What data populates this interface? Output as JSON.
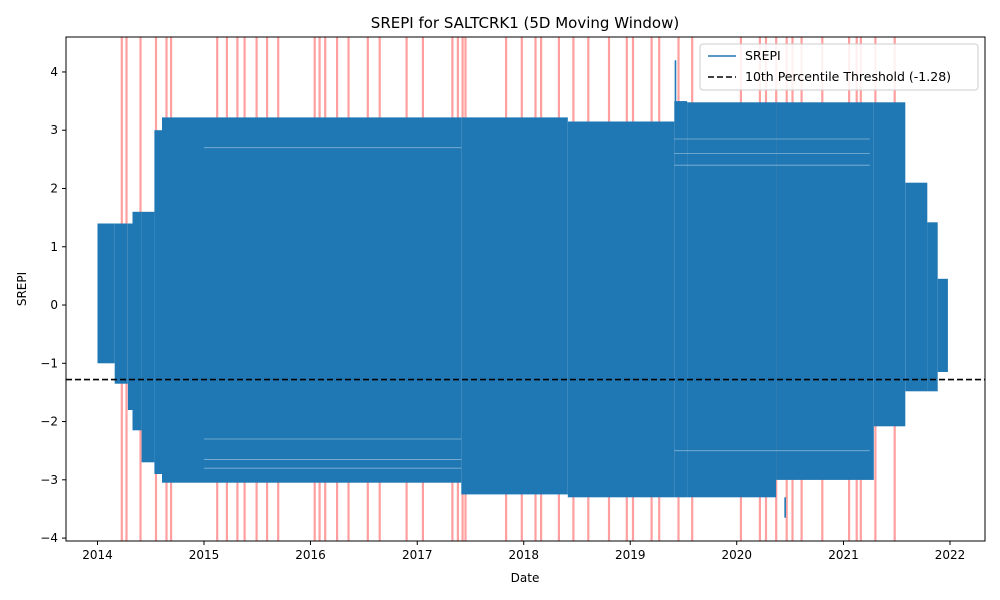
{
  "chart_data": {
    "type": "line",
    "title": "SREPI for SALTCRK1 (5D Moving Window)",
    "xlabel": "Date",
    "ylabel": "SREPI",
    "x_ticks": [
      "2014",
      "2015",
      "2016",
      "2017",
      "2018",
      "2019",
      "2020",
      "2021",
      "2022"
    ],
    "x_range": [
      "2013-09-15",
      "2022-05-01"
    ],
    "y_ticks": [
      -4,
      -3,
      -2,
      -1,
      0,
      1,
      2,
      3,
      4
    ],
    "ylim": [
      -4.05,
      4.6
    ],
    "grid": false,
    "legend_position": "top-right",
    "legend": [
      "SREPI",
      "10th Percentile Threshold (-1.28)"
    ],
    "colors": {
      "series": "#1f77b4",
      "threshold": "#000000",
      "drought_spans": "#ff6b6b"
    },
    "threshold": {
      "name": "10th Percentile Threshold (-1.28)",
      "value": -1.28
    },
    "series": [
      {
        "name": "SREPI",
        "envelope": [
          {
            "from": "2014-01-01",
            "to": "2014-03-01",
            "min": -1.0,
            "max": 1.4
          },
          {
            "from": "2014-03-01",
            "to": "2014-04-15",
            "min": -1.35,
            "max": 1.4
          },
          {
            "from": "2014-04-15",
            "to": "2014-05-01",
            "min": -1.8,
            "max": 1.4
          },
          {
            "from": "2014-05-01",
            "to": "2014-06-01",
            "min": -2.15,
            "max": 1.6
          },
          {
            "from": "2014-06-01",
            "to": "2014-07-15",
            "min": -2.7,
            "max": 1.6
          },
          {
            "from": "2014-07-15",
            "to": "2014-08-10",
            "min": -2.9,
            "max": 3.0
          },
          {
            "from": "2014-08-10",
            "to": "2017-06-01",
            "min": -3.05,
            "max": 3.22
          },
          {
            "from": "2017-06-01",
            "to": "2018-06-01",
            "min": -3.25,
            "max": 3.22
          },
          {
            "from": "2018-06-01",
            "to": "2019-06-01",
            "min": -3.3,
            "max": 3.15
          },
          {
            "from": "2019-06-01",
            "to": "2019-07-15",
            "min": -3.3,
            "max": 3.5
          },
          {
            "from": "2019-07-15",
            "to": "2020-05-15",
            "min": -3.3,
            "max": 3.48
          },
          {
            "from": "2020-05-15",
            "to": "2021-04-15",
            "min": -3.0,
            "max": 3.48
          },
          {
            "from": "2021-04-15",
            "to": "2021-08-01",
            "min": -2.08,
            "max": 3.48
          },
          {
            "from": "2021-08-01",
            "to": "2021-10-15",
            "min": -1.48,
            "max": 2.1
          },
          {
            "from": "2021-10-15",
            "to": "2021-11-20",
            "min": -1.48,
            "max": 1.42
          },
          {
            "from": "2021-11-20",
            "to": "2021-12-25",
            "min": -1.15,
            "max": 0.45
          }
        ],
        "spikes": [
          {
            "date": "2019-06-05",
            "value": 4.2
          },
          {
            "date": "2020-06-15",
            "value": -3.65
          }
        ]
      }
    ],
    "drought_spans": [
      "2014-03-25",
      "2014-04-10",
      "2014-05-28",
      "2014-07-20",
      "2014-08-25",
      "2014-09-10",
      "2015-02-15",
      "2015-03-20",
      "2015-04-25",
      "2015-05-20",
      "2015-06-30",
      "2015-08-05",
      "2015-09-12",
      "2016-01-15",
      "2016-02-01",
      "2016-02-20",
      "2016-04-01",
      "2016-05-10",
      "2016-07-15",
      "2016-08-25",
      "2016-11-25",
      "2017-01-20",
      "2017-05-01",
      "2017-05-20",
      "2017-06-05",
      "2017-06-15",
      "2017-11-01",
      "2017-12-25",
      "2018-02-10",
      "2018-03-01",
      "2018-05-01",
      "2018-06-20",
      "2018-08-10",
      "2018-10-20",
      "2018-12-20",
      "2019-01-10",
      "2019-03-15",
      "2019-04-10",
      "2019-06-15",
      "2019-08-01",
      "2020-01-15",
      "2020-03-20",
      "2020-04-10",
      "2020-05-15",
      "2020-06-20",
      "2020-07-10",
      "2020-08-10",
      "2020-10-20",
      "2021-01-20",
      "2021-02-15",
      "2021-03-01",
      "2021-04-20",
      "2021-06-25"
    ]
  }
}
